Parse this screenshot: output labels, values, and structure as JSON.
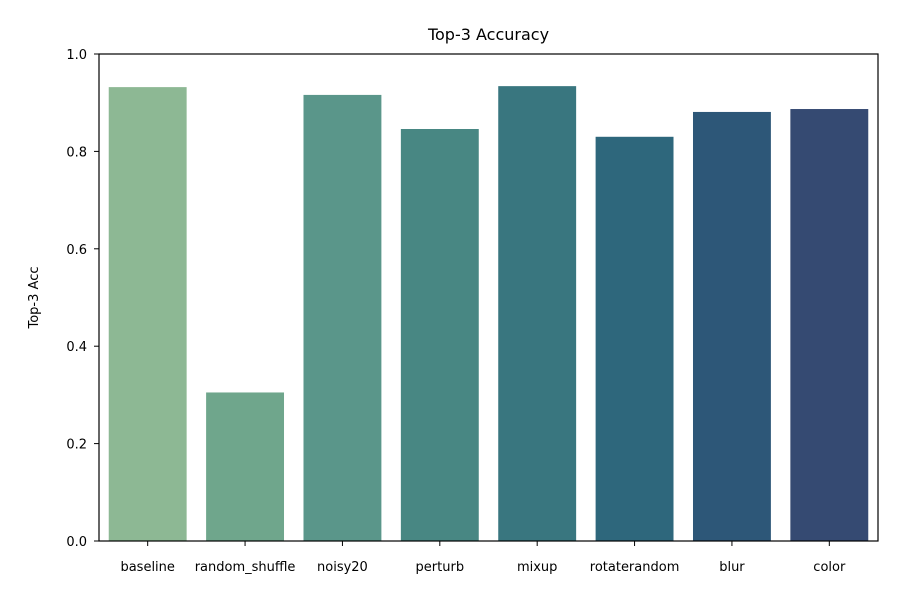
{
  "chart_data": {
    "type": "bar",
    "title": "Top-3 Accuracy",
    "xlabel": "",
    "ylabel": "Top-3 Acc",
    "ylim": [
      0,
      1.0
    ],
    "yticks": [
      "0.0",
      "0.2",
      "0.4",
      "0.6",
      "0.8",
      "1.0"
    ],
    "categories": [
      "baseline",
      "random_shuffle",
      "noisy20",
      "perturb",
      "mixup",
      "rotaterandom",
      "blur",
      "color"
    ],
    "values": [
      0.932,
      0.305,
      0.916,
      0.846,
      0.934,
      0.83,
      0.881,
      0.887
    ],
    "colors": [
      "#8db894",
      "#6fa68c",
      "#5a968a",
      "#488783",
      "#39767f",
      "#2e677c",
      "#2d5778",
      "#354a72"
    ],
    "grid": false,
    "legend": "none"
  }
}
